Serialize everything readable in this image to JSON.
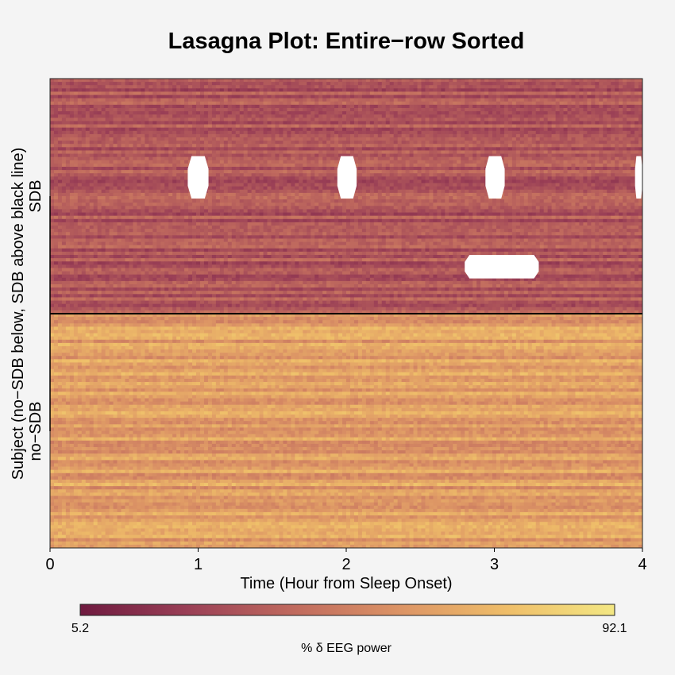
{
  "chart_data": {
    "type": "heatmap",
    "title": "Lasagna Plot: Entire−row Sorted",
    "xlabel": "Time (Hour from Sleep Onset)",
    "ylabel": "Subject (no−SDB below, SDB above black line)",
    "x_range": [
      0,
      4
    ],
    "x_ticks": [
      "0",
      "1",
      "2",
      "3",
      "4"
    ],
    "group_labels": [
      "SDB",
      "no−SDB"
    ],
    "groups": [
      {
        "label": "SDB",
        "position": "top",
        "mean_value": 32,
        "variation": 9
      },
      {
        "label": "no−SDB",
        "position": "bottom",
        "mean_value": 62,
        "variation": 10
      }
    ],
    "missing_blocks": [
      {
        "group": "SDB",
        "x_start": 0.93,
        "x_end": 1.07,
        "row_fraction_start": 0.33,
        "row_fraction_end": 0.51
      },
      {
        "group": "SDB",
        "x_start": 1.94,
        "x_end": 2.07,
        "row_fraction_start": 0.33,
        "row_fraction_end": 0.51
      },
      {
        "group": "SDB",
        "x_start": 2.94,
        "x_end": 3.07,
        "row_fraction_start": 0.33,
        "row_fraction_end": 0.51
      },
      {
        "group": "SDB",
        "x_start": 3.95,
        "x_end": 4.0,
        "row_fraction_start": 0.33,
        "row_fraction_end": 0.51
      },
      {
        "group": "SDB",
        "x_start": 2.8,
        "x_end": 3.3,
        "row_fraction_start": 0.75,
        "row_fraction_end": 0.85
      }
    ],
    "colorbar": {
      "label": "% δ EEG power",
      "min_label": "5.2",
      "max_label": "92.1",
      "min": 5.2,
      "max": 92.1,
      "colors": [
        "#6e1a3f",
        "#9a3f56",
        "#c06a5e",
        "#dc9465",
        "#efbe69",
        "#f3e783"
      ]
    },
    "grid": false,
    "legend": "bottom"
  }
}
